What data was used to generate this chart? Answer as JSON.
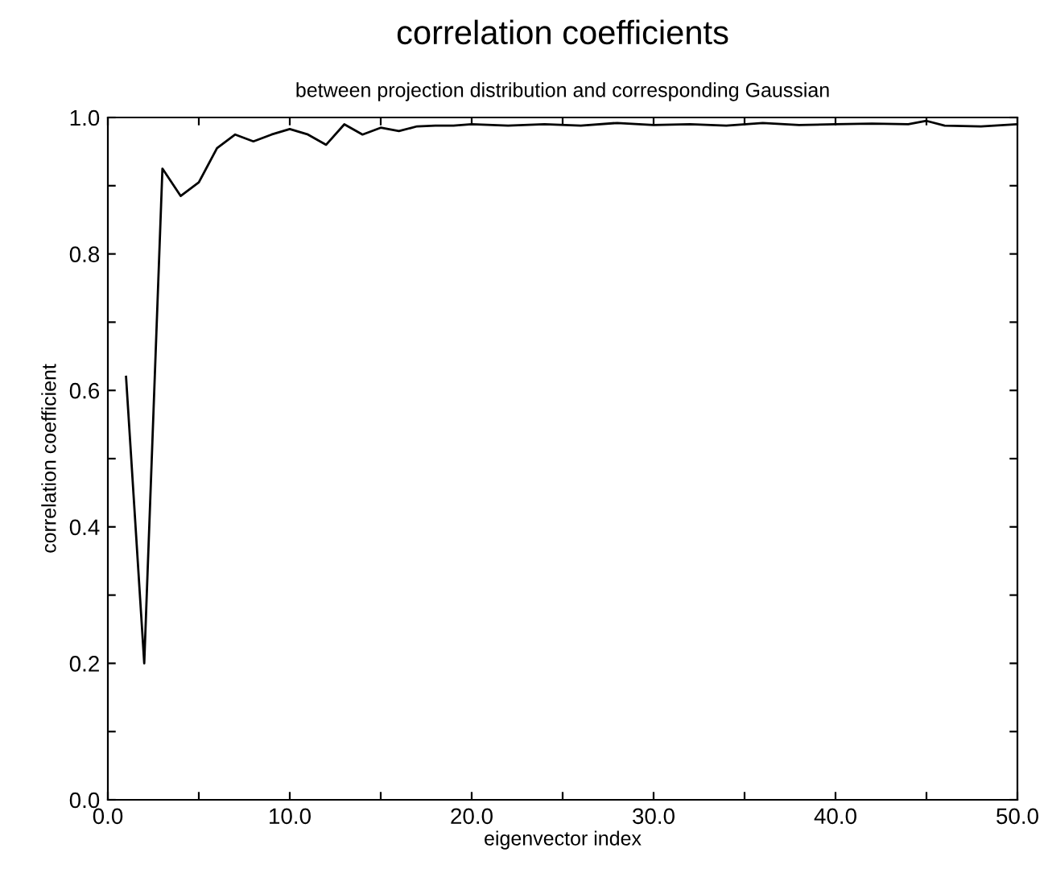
{
  "chart_data": {
    "type": "line",
    "title": "correlation coefficients",
    "subtitle": "between projection distribution and corresponding Gaussian",
    "xlabel": "eigenvector index",
    "ylabel": "correlation coefficient",
    "x": [
      1,
      2,
      3,
      4,
      5,
      6,
      7,
      8,
      9,
      10,
      11,
      12,
      13,
      14,
      15,
      16,
      17,
      18,
      19,
      20,
      22,
      24,
      26,
      28,
      30,
      32,
      34,
      36,
      38,
      40,
      42,
      44,
      45,
      46,
      48,
      50
    ],
    "series": [
      {
        "color": "#000000",
        "values": [
          0.62,
          0.2,
          0.925,
          0.885,
          0.905,
          0.955,
          0.975,
          0.965,
          0.975,
          0.983,
          0.975,
          0.96,
          0.99,
          0.975,
          0.985,
          0.98,
          0.987,
          0.988,
          0.988,
          0.99,
          0.988,
          0.99,
          0.988,
          0.992,
          0.989,
          0.99,
          0.988,
          0.992,
          0.989,
          0.99,
          0.991,
          0.99,
          0.995,
          0.988,
          0.987,
          0.99
        ]
      }
    ],
    "xlim": [
      0,
      50
    ],
    "ylim": [
      0,
      1
    ],
    "xticks": [
      {
        "value": 0,
        "label": "0.0"
      },
      {
        "value": 5,
        "label": null
      },
      {
        "value": 10,
        "label": "10.0"
      },
      {
        "value": 15,
        "label": null
      },
      {
        "value": 20,
        "label": "20.0"
      },
      {
        "value": 25,
        "label": null
      },
      {
        "value": 30,
        "label": "30.0"
      },
      {
        "value": 35,
        "label": null
      },
      {
        "value": 40,
        "label": "40.0"
      },
      {
        "value": 45,
        "label": null
      },
      {
        "value": 50,
        "label": "50.0"
      }
    ],
    "yticks": [
      {
        "value": 0,
        "label": "0.0"
      },
      {
        "value": 0.1,
        "label": null
      },
      {
        "value": 0.2,
        "label": "0.2"
      },
      {
        "value": 0.3,
        "label": null
      },
      {
        "value": 0.4,
        "label": "0.4"
      },
      {
        "value": 0.5,
        "label": null
      },
      {
        "value": 0.6,
        "label": "0.6"
      },
      {
        "value": 0.7,
        "label": null
      },
      {
        "value": 0.8,
        "label": "0.8"
      },
      {
        "value": 0.9,
        "label": null
      },
      {
        "value": 1,
        "label": "1.0"
      }
    ],
    "grid": false,
    "legend": false,
    "marker": "none",
    "line_style": "solid"
  }
}
